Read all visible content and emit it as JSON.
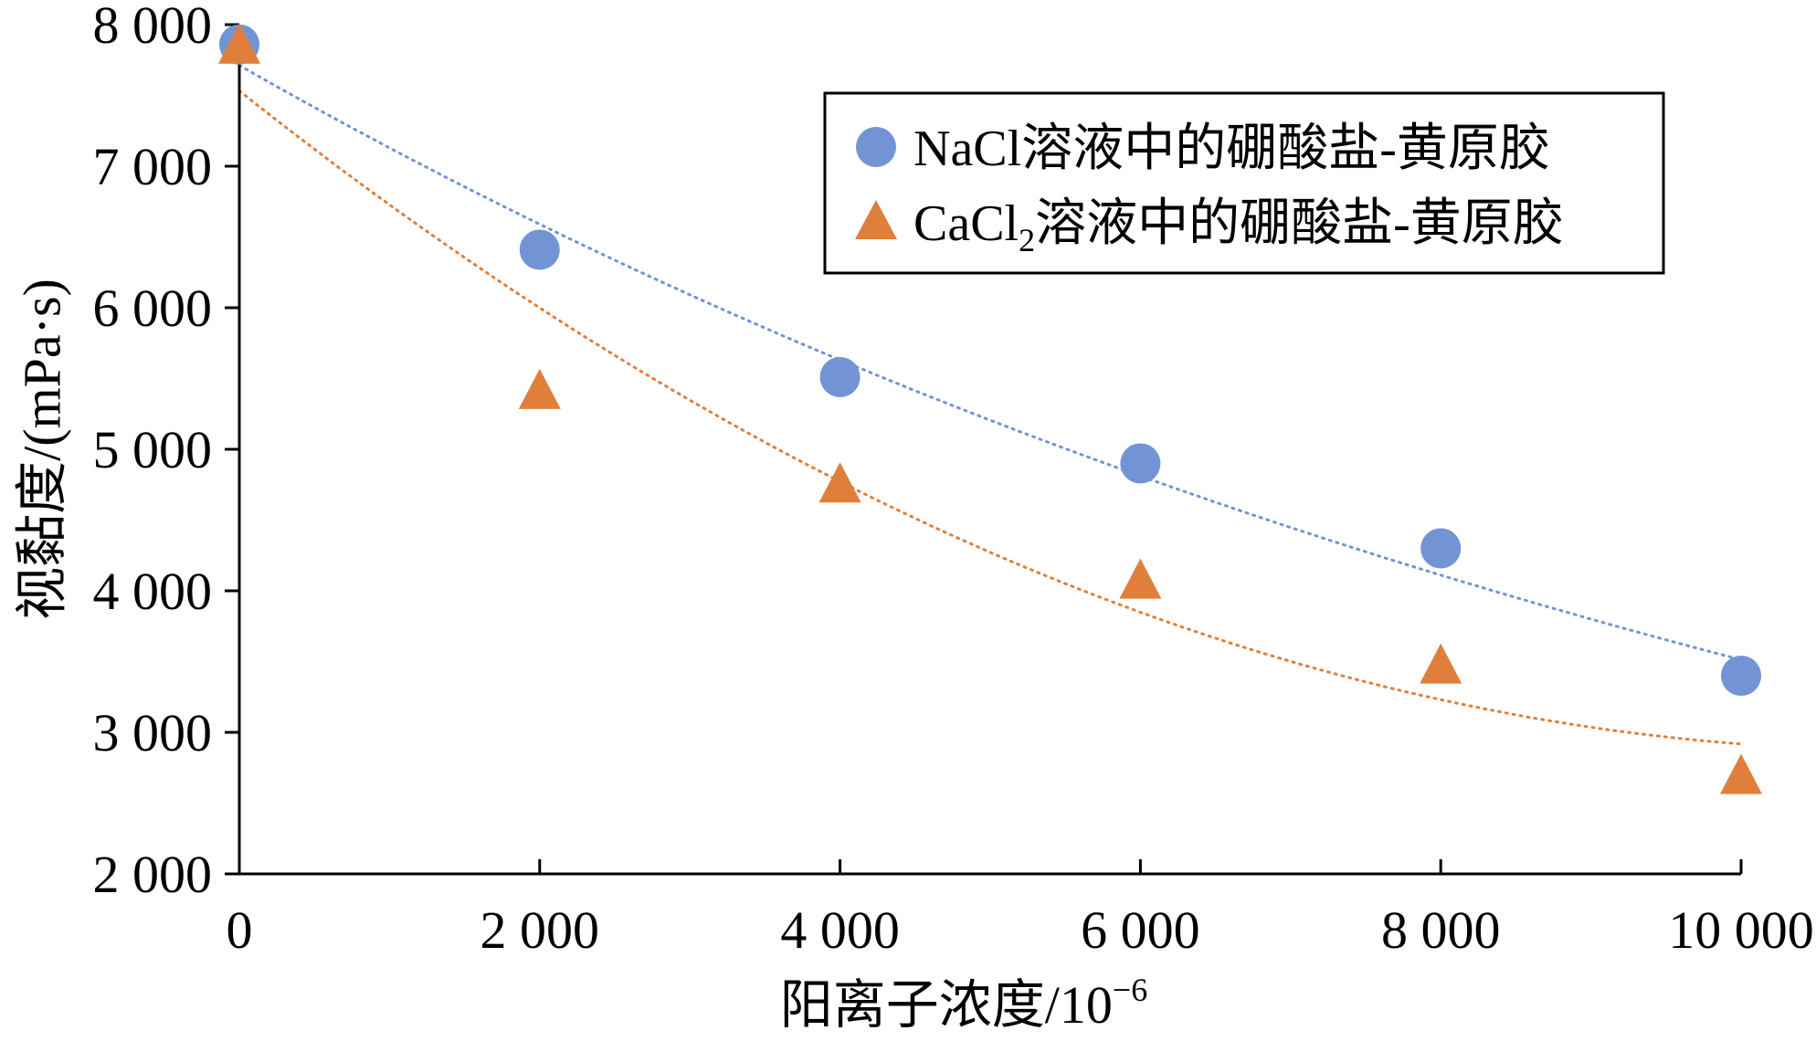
{
  "chart_data": {
    "type": "scatter",
    "title": "",
    "xlabel": "阳离子浓度/10",
    "xlabel_superscript": "−6",
    "ylabel": "视黏度/(mPa·s)",
    "xlim": [
      0,
      10000
    ],
    "ylim": [
      2000,
      8000
    ],
    "x_ticks": [
      0,
      2000,
      4000,
      6000,
      8000,
      10000
    ],
    "x_tick_labels": [
      "0",
      "2 000",
      "4 000",
      "6 000",
      "8 000",
      "10 000"
    ],
    "y_ticks": [
      2000,
      3000,
      4000,
      5000,
      6000,
      7000,
      8000
    ],
    "y_tick_labels": [
      "2 000",
      "3 000",
      "4 000",
      "5 000",
      "6 000",
      "7 000",
      "8 000"
    ],
    "grid": false,
    "legend_position": "top-right",
    "series": [
      {
        "name": "NaCl溶液中的硼酸盐-黄原胶",
        "marker": "circle",
        "color": "#7294d4",
        "x": [
          0,
          2000,
          4000,
          6000,
          8000,
          10000
        ],
        "y": [
          7860,
          6410,
          5510,
          4900,
          4300,
          3400
        ],
        "trendline": "exponential",
        "trend_color": "#7294d4"
      },
      {
        "name_parts": [
          "CaCl",
          "2",
          "溶液中的硼酸盐-黄原胶"
        ],
        "marker": "triangle",
        "color": "#e07f3b",
        "x": [
          0,
          2000,
          4000,
          6000,
          8000,
          10000
        ],
        "y": [
          7860,
          5420,
          4760,
          4080,
          3480,
          2700
        ],
        "trendline": "polynomial",
        "trend_color": "#e07f3b"
      }
    ]
  }
}
